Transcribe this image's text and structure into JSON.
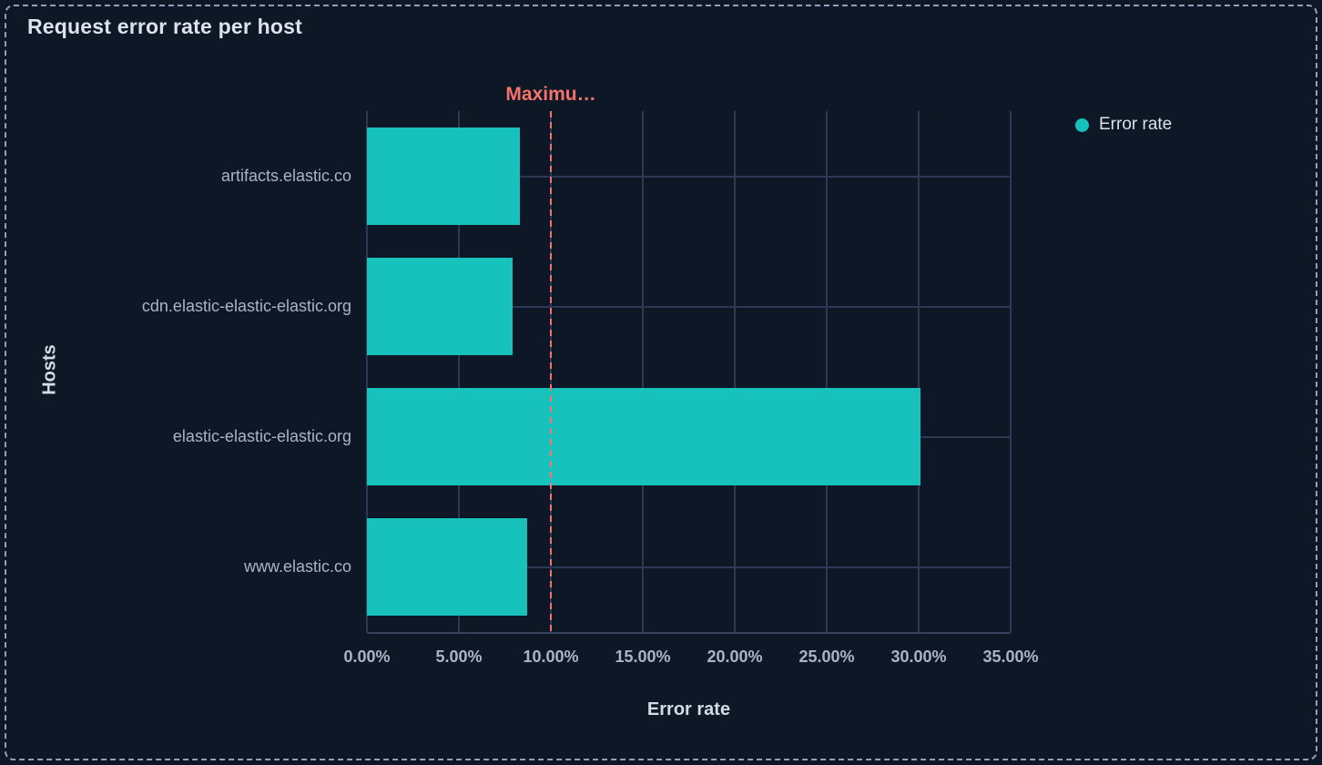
{
  "panel": {
    "title": "Request error rate per host"
  },
  "legend": {
    "items": [
      {
        "label": "Error rate",
        "color": "#17c2bd"
      }
    ]
  },
  "chart_data": {
    "type": "bar",
    "orientation": "horizontal",
    "title": "Request error rate per host",
    "xlabel": "Error rate",
    "ylabel": "Hosts",
    "categories": [
      "artifacts.elastic.co",
      "cdn.elastic-elastic-elastic.org",
      "elastic-elastic-elastic.org",
      "www.elastic.co"
    ],
    "series": [
      {
        "name": "Error rate",
        "color": "#17c2bd",
        "values": [
          8.3,
          7.9,
          30.1,
          8.7
        ]
      }
    ],
    "value_unit": "%",
    "xlim": [
      0,
      35
    ],
    "x_ticks": [
      {
        "value": 0,
        "label": "0.00%"
      },
      {
        "value": 5,
        "label": "5.00%"
      },
      {
        "value": 10,
        "label": "10.00%"
      },
      {
        "value": 15,
        "label": "15.00%"
      },
      {
        "value": 20,
        "label": "20.00%"
      },
      {
        "value": 25,
        "label": "25.00%"
      },
      {
        "value": 30,
        "label": "30.00%"
      },
      {
        "value": 35,
        "label": "35.00%"
      }
    ],
    "grid": true,
    "legend_position": "right",
    "annotations": [
      {
        "type": "vertical-line",
        "value": 10,
        "label": "Maximu…",
        "line_style": "dashed",
        "color": "#f6726a"
      }
    ]
  },
  "colors": {
    "background": "#0e1726",
    "panel_border": "#8fa0bb",
    "bar": "#17c2bd",
    "gridline": "#2c3954",
    "axis_line": "#35425e",
    "threshold": "#f6726a",
    "title_text": "#dce3ee",
    "label_text": "#a9b4c8",
    "axis_title_text": "#d3dbe7"
  }
}
